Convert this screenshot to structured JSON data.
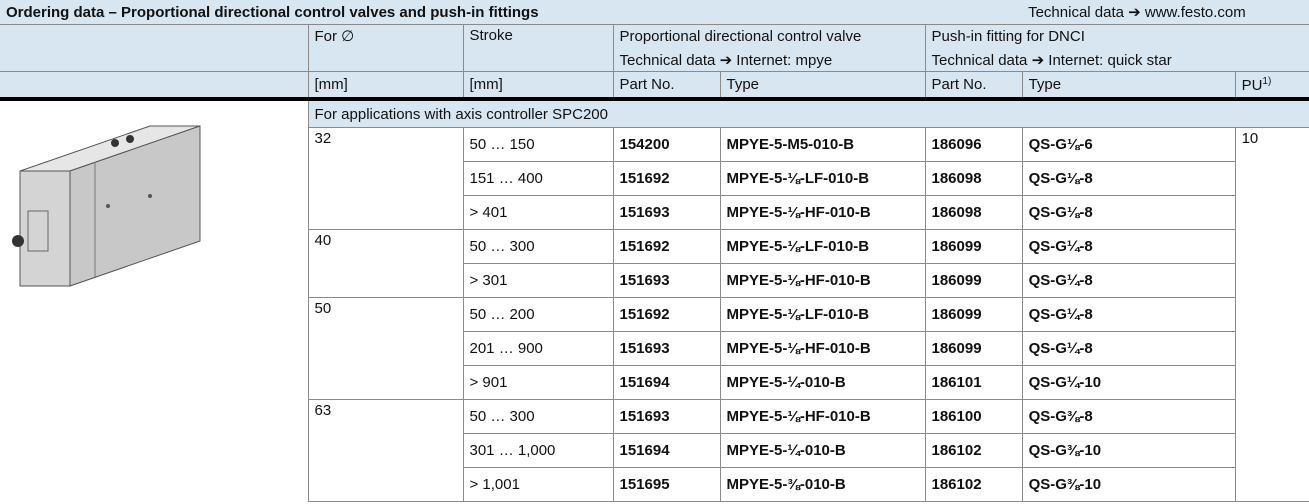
{
  "header": {
    "title": "Ordering data – Proportional directional control valves and push-in fittings",
    "link": "Technical data ➔ www.festo.com"
  },
  "columns": {
    "diameter": "For ∅",
    "stroke": "Stroke",
    "valve": "Proportional directional control valve",
    "valve_link": "Technical data ➔ Internet: mpye",
    "fitting": "Push-in fitting for DNCI",
    "fitting_link": "Technical data ➔ Internet: quick star",
    "diameter_unit": "[mm]",
    "stroke_unit": "[mm]",
    "valve_part_no": "Part No.",
    "valve_type": "Type",
    "fitting_part_no": "Part No.",
    "fitting_type": "Type",
    "pu": "PU",
    "pu_note": "1)"
  },
  "section": "For applications with axis controller SPC200",
  "pu_value": "10",
  "groups": [
    {
      "diameter": "32",
      "rows": [
        [
          "50 … 150",
          "154200",
          "MPYE-5-M5-010-B",
          "186096",
          "QS-G⅛-6"
        ],
        [
          "151 … 400",
          "151692",
          "MPYE-5-⅛-LF-010-B",
          "186098",
          "QS-G⅛-8"
        ],
        [
          "> 401",
          "151693",
          "MPYE-5-⅛-HF-010-B",
          "186098",
          "QS-G⅛-8"
        ]
      ]
    },
    {
      "diameter": "40",
      "rows": [
        [
          "50 … 300",
          "151692",
          "MPYE-5-⅛-LF-010-B",
          "186099",
          "QS-G¼-8"
        ],
        [
          "> 301",
          "151693",
          "MPYE-5-⅛-HF-010-B",
          "186099",
          "QS-G¼-8"
        ]
      ]
    },
    {
      "diameter": "50",
      "rows": [
        [
          "50 … 200",
          "151692",
          "MPYE-5-⅛-LF-010-B",
          "186099",
          "QS-G¼-8"
        ],
        [
          "201 … 900",
          "151693",
          "MPYE-5-⅛-HF-010-B",
          "186099",
          "QS-G¼-8"
        ],
        [
          "> 901",
          "151694",
          "MPYE-5-¼-010-B",
          "186101",
          "QS-G¼-10"
        ]
      ]
    },
    {
      "diameter": "63",
      "rows": [
        [
          "50 … 300",
          "151693",
          "MPYE-5-⅛-HF-010-B",
          "186100",
          "QS-G⅜-8"
        ],
        [
          "301 … 1,000",
          "151694",
          "MPYE-5-¼-010-B",
          "186102",
          "QS-G⅜-10"
        ],
        [
          "> 1,001",
          "151695",
          "MPYE-5-⅜-010-B",
          "186102",
          "QS-G⅜-10"
        ]
      ]
    }
  ]
}
